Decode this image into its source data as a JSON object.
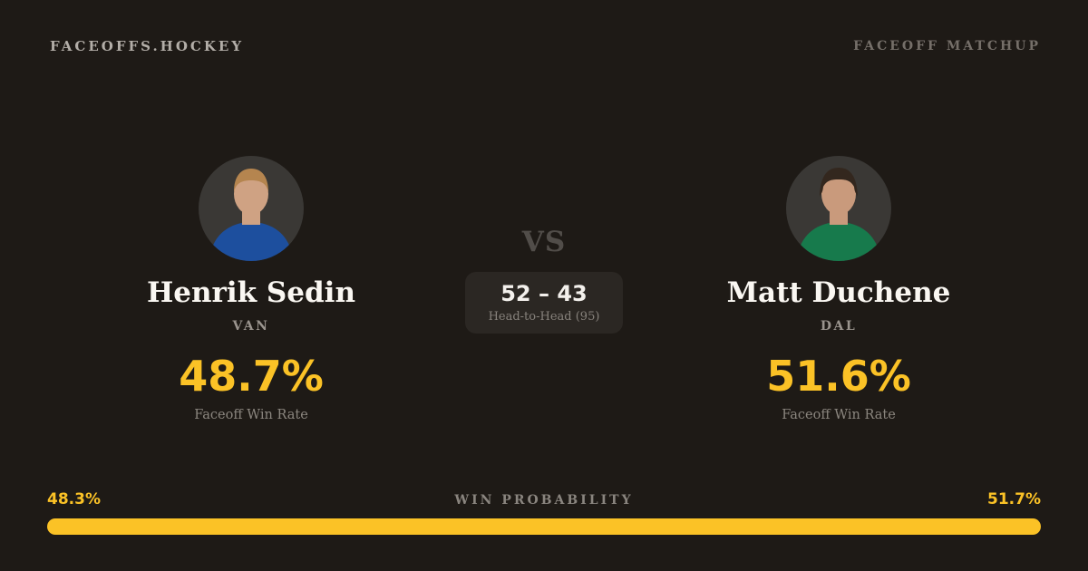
{
  "header": {
    "brand": "FACEOFFS.HOCKEY",
    "page_label": "FACEOFF MATCHUP"
  },
  "players": {
    "left": {
      "name": "Henrik Sedin",
      "team": "VAN",
      "win_rate": "48.7%",
      "win_rate_label": "Faceoff Win Rate",
      "jersey_color": "#1d4f9e",
      "hair_color": "#b5854f",
      "skin_color": "#cfa283"
    },
    "right": {
      "name": "Matt Duchene",
      "team": "DAL",
      "win_rate": "51.6%",
      "win_rate_label": "Faceoff Win Rate",
      "jersey_color": "#177a4c",
      "hair_color": "#33271e",
      "skin_color": "#c99a7c"
    }
  },
  "matchup": {
    "vs_label": "VS",
    "head_to_head_score": "52 – 43",
    "head_to_head_label": "Head-to-Head (95)"
  },
  "win_probability": {
    "label": "WIN PROBABILITY",
    "left_pct": "48.3%",
    "right_pct": "51.7%",
    "left_value": 48.3,
    "right_value": 51.7,
    "bar_color": "#fbc226"
  },
  "colors": {
    "background": "#1e1a16",
    "accent": "#fbc226",
    "text_primary": "#faf7f2",
    "text_muted": "#8b867f",
    "box_background": "#2b2723"
  }
}
